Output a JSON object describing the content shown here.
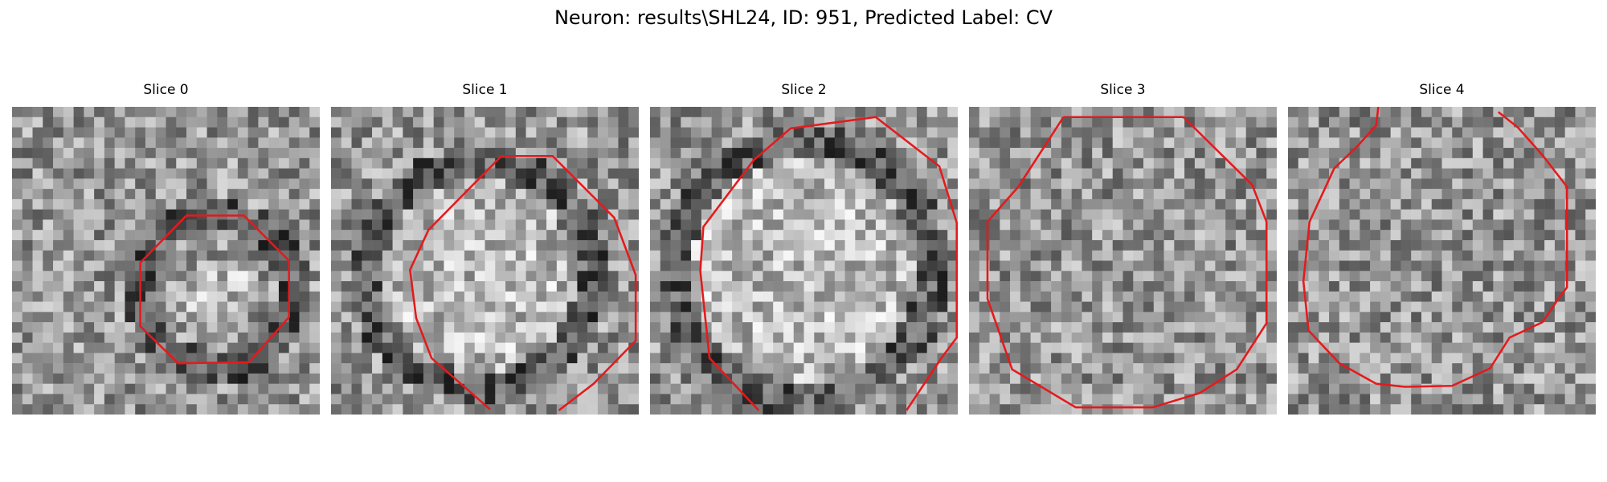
{
  "figure": {
    "title": "Neuron: results\\SHL24, ID: 951, Predicted Label: CV",
    "contour_color": "#e41a1c",
    "panels": [
      {
        "title": "Slice 0",
        "seed": 11,
        "bright_center": false,
        "dark_ring": true
      },
      {
        "title": "Slice 1",
        "seed": 23,
        "bright_center": true,
        "dark_ring": true
      },
      {
        "title": "Slice 2",
        "seed": 37,
        "bright_center": true,
        "dark_ring": true
      },
      {
        "title": "Slice 3",
        "seed": 51,
        "bright_center": false,
        "dark_ring": false
      },
      {
        "title": "Slice 4",
        "seed": 67,
        "bright_center": false,
        "dark_ring": false
      }
    ]
  }
}
